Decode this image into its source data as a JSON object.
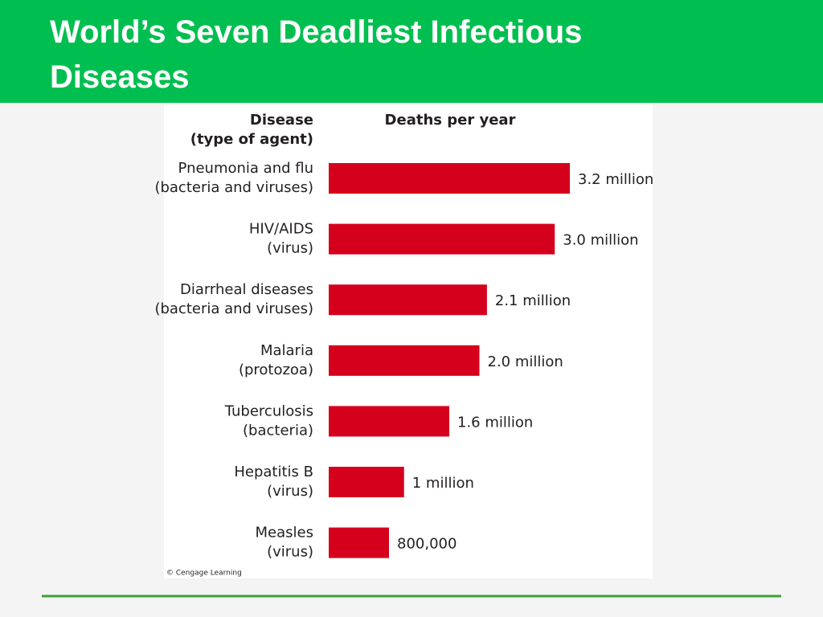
{
  "chart_data": {
    "type": "barh",
    "title": "World’s Seven Deadliest Infectious Diseases",
    "category_header": [
      "Disease",
      "(type of agent)"
    ],
    "value_header": "Deaths per year",
    "categories": [
      [
        "Pneumonia and flu",
        "(bacteria and viruses)"
      ],
      [
        "HIV/AIDS",
        "(virus)"
      ],
      [
        "Diarrheal diseases",
        "(bacteria and viruses)"
      ],
      [
        "Malaria",
        "(protozoa)"
      ],
      [
        "Tuberculosis",
        "(bacteria)"
      ],
      [
        "Hepatitis B",
        "(virus)"
      ],
      [
        "Measles",
        "(virus)"
      ]
    ],
    "values": [
      3200000,
      3000000,
      2100000,
      2000000,
      1600000,
      1000000,
      800000
    ],
    "value_labels": [
      "3.2 million",
      "3.0 million",
      "2.1 million",
      "2.0 million",
      "1.6 million",
      "1 million",
      "800,000"
    ],
    "color": "#d5001c",
    "credit": "© Cengage Learning"
  }
}
